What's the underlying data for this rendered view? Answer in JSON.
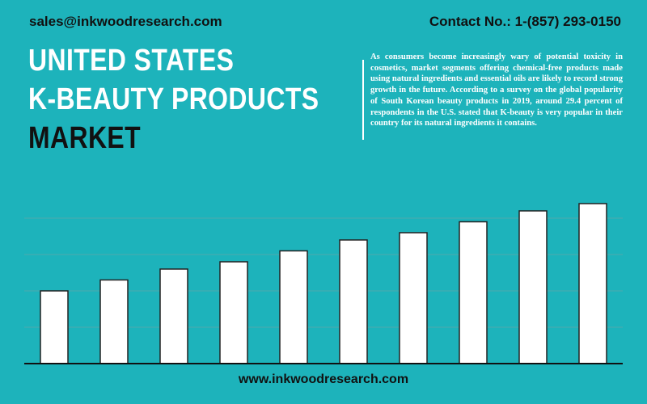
{
  "header": {
    "email": "sales@inkwoodresearch.com",
    "contact": "Contact No.: 1-(857) 293-0150"
  },
  "title": [
    "UNITED STATES",
    "K-BEAUTY PRODUCTS",
    "MARKET"
  ],
  "description": "As consumers become increasingly wary of potential toxicity in cosmetics, market segments offering chemical-free products made using natural ingredients and essential oils are likely to record strong growth in the future. According to a survey on the global popularity of South Korean beauty products in 2019, around 29.4 percent of respondents in the U.S. stated that K-beauty is very popular in their country for its natural ingredients it contains.",
  "footer": "www.inkwoodresearch.com",
  "chart_data": {
    "type": "bar",
    "values": [
      2.0,
      2.3,
      2.6,
      2.8,
      3.1,
      3.4,
      3.6,
      3.9,
      4.2,
      4.4
    ],
    "color": "#ffffff",
    "ylim": [
      0,
      5
    ],
    "yticks": [
      1,
      2,
      3,
      4
    ],
    "grid": true
  }
}
